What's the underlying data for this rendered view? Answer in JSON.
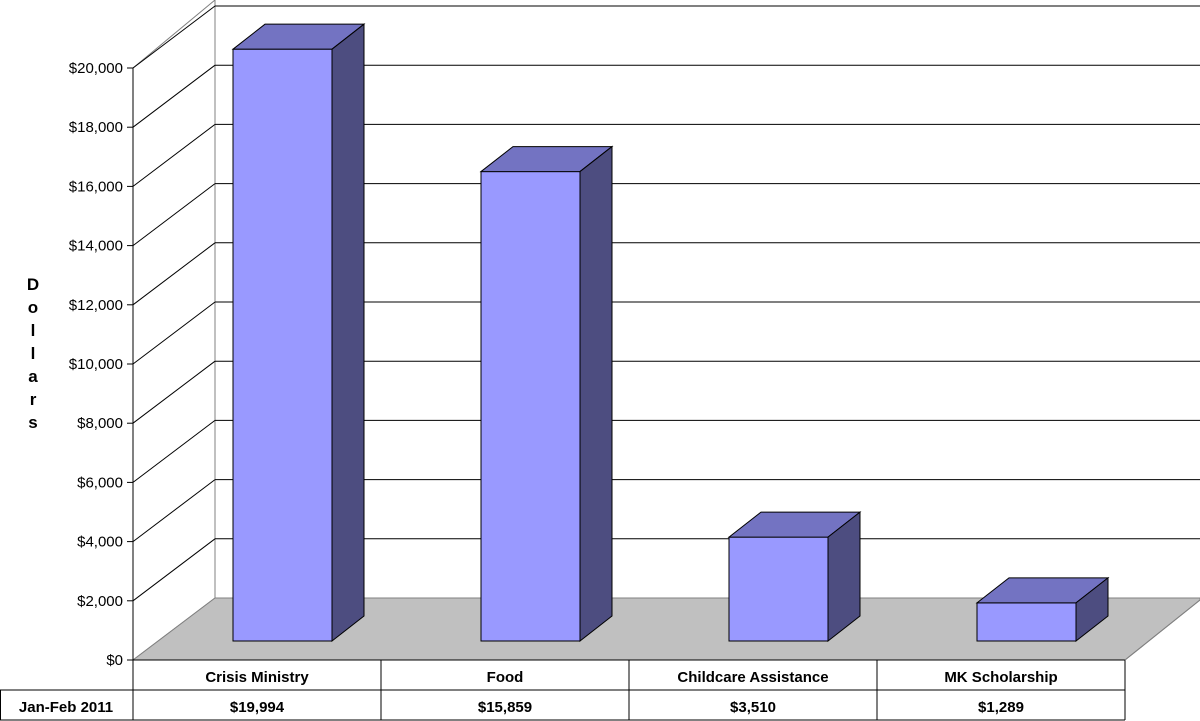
{
  "chart_data": {
    "type": "bar",
    "title": "",
    "xlabel": "",
    "ylabel": "Dollars",
    "ylim": [
      0,
      20000
    ],
    "y_ticks": [
      "$0",
      "$2,000",
      "$4,000",
      "$6,000",
      "$8,000",
      "$10,000",
      "$12,000",
      "$14,000",
      "$16,000",
      "$18,000",
      "$20,000"
    ],
    "categories": [
      "Crisis Ministry",
      "Food",
      "Childcare Assistance",
      "MK Scholarship"
    ],
    "series": [
      {
        "name": "Jan-Feb 2011",
        "values": [
          19994,
          15859,
          3510,
          1289
        ],
        "value_labels": [
          "$19,994",
          "$15,859",
          "$3,510",
          "$1,289"
        ]
      }
    ],
    "data_table": true,
    "three_d": true,
    "grid": true,
    "colors": {
      "bar_front": "#9999ff",
      "bar_top": "#7373c2",
      "bar_side": "#4d4d80",
      "floor": "#c0c0c0",
      "gridline": "#000000"
    }
  }
}
